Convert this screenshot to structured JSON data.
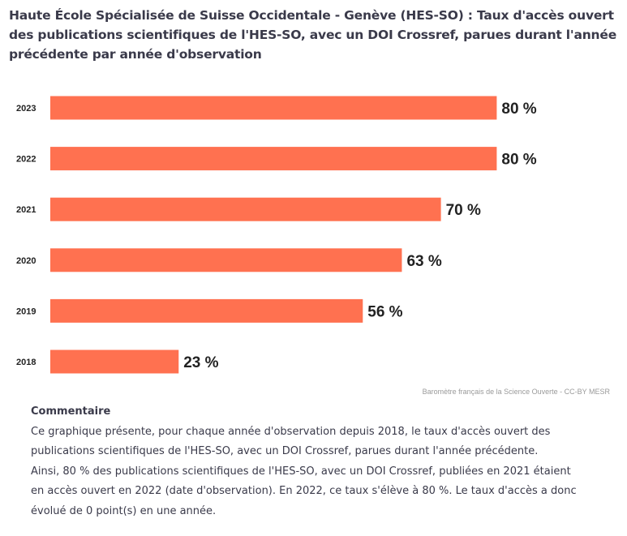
{
  "chart": {
    "title": "Haute École Spécialisée de Suisse Occidentale - Genève (HES-SO) : Taux d'accès ouvert des publications scientifiques de l'HES-SO, avec un DOI Crossref, parues durant l'année précédente par année d'observation",
    "credit": "Baromètre français de la Science Ouverte - CC-BY MESR"
  },
  "commentary": {
    "heading": "Commentaire",
    "lines": [
      "Ce graphique présente, pour chaque année d'observation depuis 2018, le taux d'accès ouvert des",
      "publications scientifiques de l'HES-SO, avec un DOI Crossref, parues durant l'année précédente.",
      "Ainsi, 80 % des publications scientifiques de l'HES-SO, avec un DOI Crossref, publiées en 2021 étaient",
      "en accès ouvert en 2022 (date d'observation). En 2022, ce taux s'élève à 80 %. Le taux d'accès a donc",
      "évolué de 0 point(s) en une année."
    ]
  },
  "chart_data": {
    "type": "bar",
    "orientation": "horizontal",
    "title": "Haute École Spécialisée de Suisse Occidentale - Genève (HES-SO) : Taux d'accès ouvert des publications scientifiques de l'HES-SO, avec un DOI Crossref, parues durant l'année précédente par année d'observation",
    "categories": [
      "2023",
      "2022",
      "2021",
      "2020",
      "2019",
      "2018"
    ],
    "values": [
      80,
      80,
      70,
      63,
      56,
      23
    ],
    "data_labels": [
      "80 %",
      "80 %",
      "70 %",
      "63 %",
      "56 %",
      "23 %"
    ],
    "value_unit": "%",
    "xlim": [
      0,
      100
    ],
    "bar_color": "#ff7150",
    "grid": false,
    "legend": "none"
  }
}
